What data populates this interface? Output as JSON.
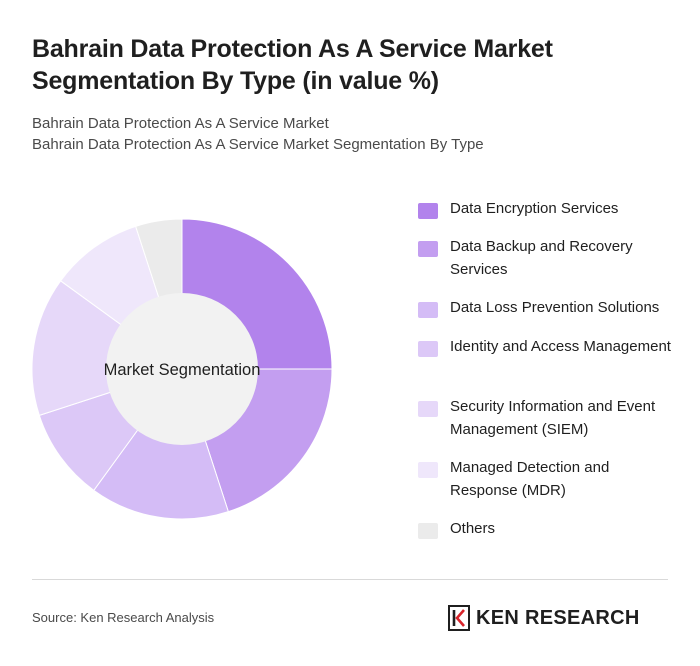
{
  "title": "Bahrain Data Protection As A Service Market Segmentation By Type (in value %)",
  "subtitle_lines": [
    "Bahrain Data Protection As A Service Market",
    "Bahrain Data Protection As A Service Market Segmentation By Type"
  ],
  "chart_data": {
    "type": "pie",
    "donut": true,
    "center_label": "Market Segmentation",
    "legend_position": "right",
    "categories": [
      "Data Encryption Services",
      "Data Backup and Recovery Services",
      "Data Loss Prevention Solutions",
      "Identity and Access Management",
      "Security Information and Event Management (SIEM)",
      "Managed Detection and Response (MDR)",
      "Others"
    ],
    "values": [
      25,
      20,
      15,
      10,
      15,
      10,
      5
    ],
    "colors": [
      "#b283ec",
      "#c39ef0",
      "#d4bcf6",
      "#dcc8f7",
      "#e6d8f9",
      "#efe7fb",
      "#ebebeb"
    ]
  },
  "legend_items": [
    {
      "label": "Data Encryption Services"
    },
    {
      "label": "Data Backup and Recovery Services"
    },
    {
      "label": "Data Loss Prevention Solutions"
    },
    {
      "label": "Identity and Access Management"
    },
    {
      "label": "Security Information and Event Management (SIEM)"
    },
    {
      "label": "Managed Detection and Response (MDR)"
    },
    {
      "label": "Others"
    }
  ],
  "source": "Source: Ken Research Analysis",
  "brand": {
    "name": "KEN RESEARCH",
    "logo_icon": "ken-research-logo-icon"
  }
}
